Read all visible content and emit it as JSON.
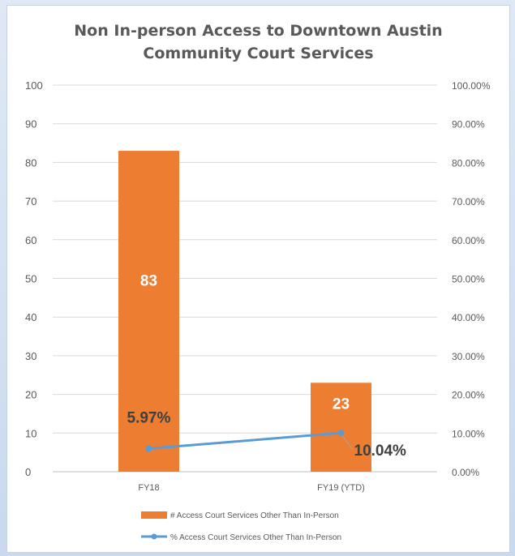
{
  "chart_data": {
    "type": "bar",
    "title_lines": [
      "Non In-person Access to Downtown Austin",
      "Community Court Services"
    ],
    "categories": [
      "FY18",
      "FY19 (YTD)"
    ],
    "series": [
      {
        "name": "# Access Court Services Other Than In-Person",
        "type": "bar",
        "axis": "left",
        "values": [
          83,
          23
        ],
        "labels": [
          "83",
          "23"
        ],
        "color": "#ed7d31"
      },
      {
        "name": "% Access Court Services Other Than In-Person",
        "type": "line",
        "axis": "right",
        "values": [
          5.97,
          10.04
        ],
        "labels": [
          "5.97%",
          "10.04%"
        ],
        "color": "#5b9bd5"
      }
    ],
    "y_left": {
      "range": [
        0,
        100
      ],
      "ticks": [
        "0",
        "10",
        "20",
        "30",
        "40",
        "50",
        "60",
        "70",
        "80",
        "90",
        "100"
      ]
    },
    "y_right": {
      "range": [
        0,
        100
      ],
      "ticks": [
        "0.00%",
        "10.00%",
        "20.00%",
        "30.00%",
        "40.00%",
        "50.00%",
        "60.00%",
        "70.00%",
        "80.00%",
        "90.00%",
        "100.00%"
      ]
    },
    "grid": true,
    "legend_position": "bottom"
  }
}
